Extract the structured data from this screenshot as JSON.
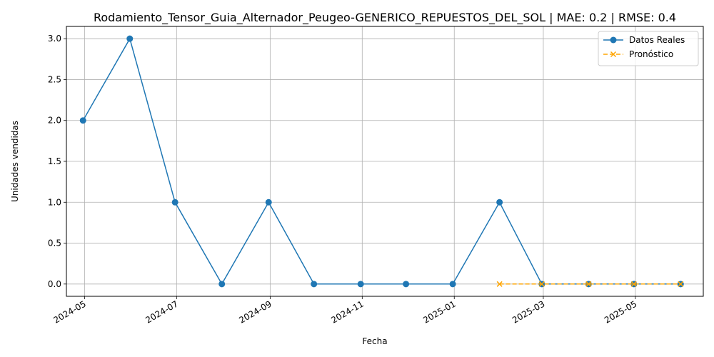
{
  "chart_data": {
    "type": "line",
    "title": "Rodamiento_Tensor_Guia_Alternador_Peugeo-GENERICO_REPUESTOS_DEL_SOL | MAE: 0.2 | RMSE: 0.4",
    "xlabel": "Fecha",
    "ylabel": "Unidades vendidas",
    "ylim": [
      -0.15,
      3.15
    ],
    "xlim": [
      "2024-04-19",
      "2025-06-15"
    ],
    "grid": true,
    "legend_position": "top-right",
    "x_ticks": [
      "2024-05-01",
      "2024-07-01",
      "2024-09-01",
      "2024-11-01",
      "2025-01-01",
      "2025-03-01",
      "2025-05-01"
    ],
    "x_tick_labels": [
      "2024-05",
      "2024-07",
      "2024-09",
      "2024-11",
      "2025-01",
      "2025-03",
      "2025-05"
    ],
    "y_ticks": [
      0.0,
      0.5,
      1.0,
      1.5,
      2.0,
      2.5,
      3.0
    ],
    "y_tick_labels": [
      "0.0",
      "0.5",
      "1.0",
      "1.5",
      "2.0",
      "2.5",
      "3.0"
    ],
    "series": [
      {
        "name": "Datos Reales",
        "color": "#1f77b4",
        "marker": "circle",
        "linestyle": "solid",
        "x": [
          "2024-04-30",
          "2024-05-31",
          "2024-06-30",
          "2024-07-31",
          "2024-08-31",
          "2024-09-30",
          "2024-10-31",
          "2024-11-30",
          "2024-12-31",
          "2025-01-31",
          "2025-02-28",
          "2025-03-31",
          "2025-04-30",
          "2025-05-31"
        ],
        "y": [
          2,
          3,
          1,
          0,
          1,
          0,
          0,
          0,
          0,
          1,
          0,
          0,
          0,
          0
        ]
      },
      {
        "name": "Pronóstico",
        "color": "#ffa500",
        "marker": "x",
        "linestyle": "dashed",
        "x": [
          "2025-01-31",
          "2025-02-28",
          "2025-03-31",
          "2025-04-30",
          "2025-05-31"
        ],
        "y": [
          0,
          0,
          0,
          0,
          0
        ]
      }
    ]
  }
}
